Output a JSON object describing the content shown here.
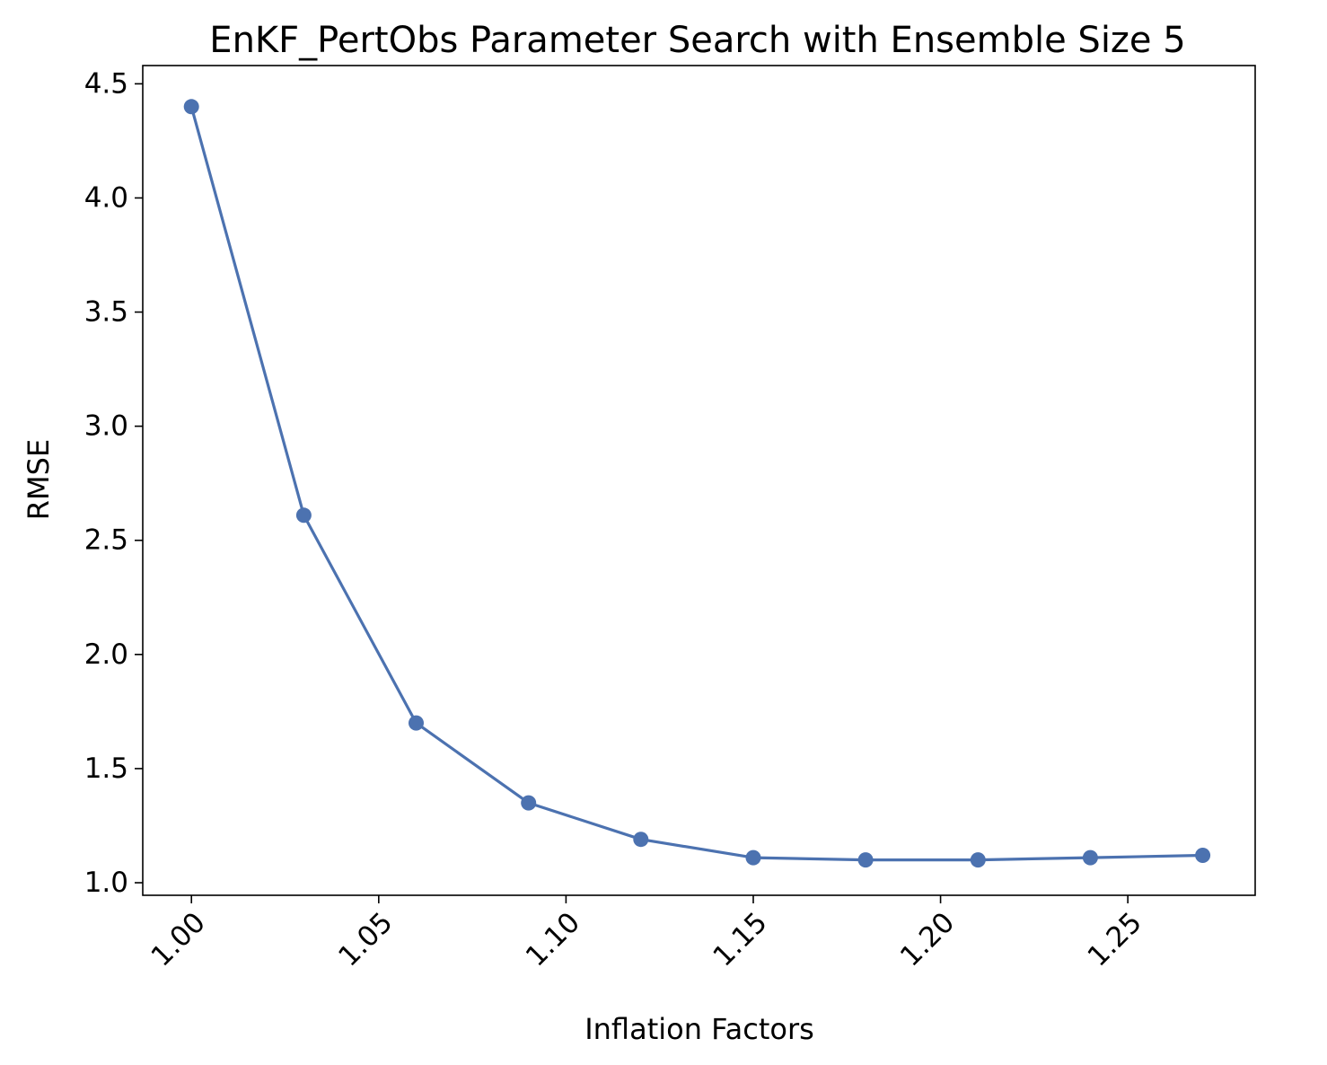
{
  "chart_data": {
    "type": "line",
    "title": "EnKF_PertObs Parameter Search with Ensemble Size 5",
    "xlabel": "Inflation Factors",
    "ylabel": "RMSE",
    "x": [
      1.0,
      1.03,
      1.06,
      1.09,
      1.12,
      1.15,
      1.18,
      1.21,
      1.24,
      1.27
    ],
    "series": [
      {
        "values": [
          4.4,
          2.61,
          1.7,
          1.35,
          1.19,
          1.11,
          1.1,
          1.1,
          1.11,
          1.12
        ],
        "color": "#4c72b0",
        "marker": "circle"
      }
    ],
    "xlim": [
      0.987,
      1.284
    ],
    "ylim": [
      0.945,
      4.58
    ],
    "xticks": [
      1.0,
      1.05,
      1.1,
      1.15,
      1.2,
      1.25
    ],
    "xtick_labels": [
      "1.00",
      "1.05",
      "1.10",
      "1.15",
      "1.20",
      "1.25"
    ],
    "yticks": [
      1.0,
      1.5,
      2.0,
      2.5,
      3.0,
      3.5,
      4.0,
      4.5
    ],
    "ytick_labels": [
      "1.0",
      "1.5",
      "2.0",
      "2.5",
      "3.0",
      "3.5",
      "4.0",
      "4.5"
    ],
    "xtick_rotation": 45,
    "grid": false,
    "legend": "none"
  }
}
